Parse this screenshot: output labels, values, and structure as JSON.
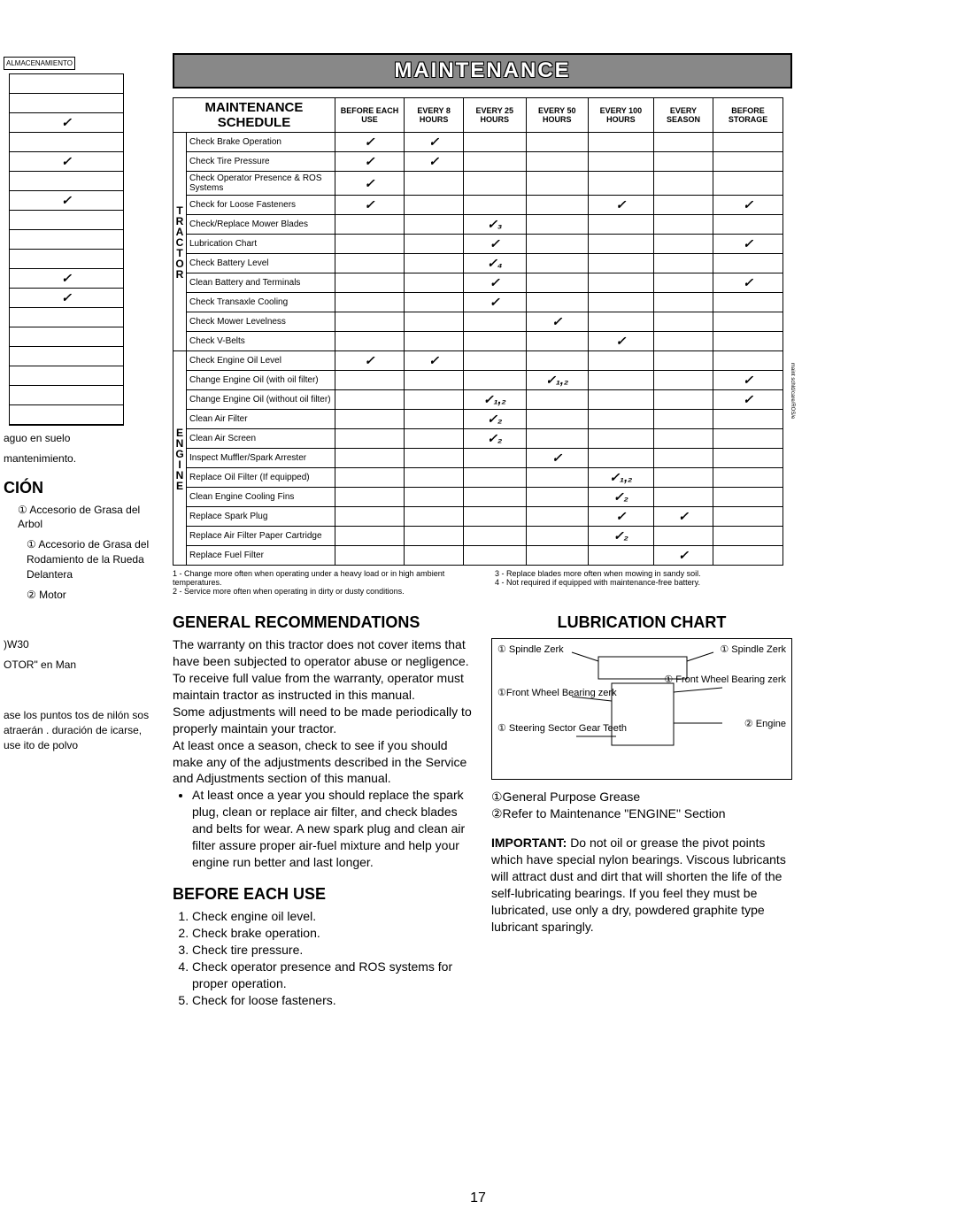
{
  "banner": "MAINTENANCE",
  "schedule_title": "MAINTENANCE SCHEDULE",
  "cols": [
    "BEFORE EACH USE",
    "EVERY 8 HOURS",
    "EVERY 25 HOURS",
    "EVERY 50 HOURS",
    "EVERY 100 HOURS",
    "EVERY SEASON",
    "BEFORE STORAGE"
  ],
  "group_labels": [
    "TRACTOR",
    "ENGINE"
  ],
  "tractor_rows": [
    {
      "t": "Check Brake Operation",
      "c": [
        "✓",
        "✓",
        "",
        "",
        "",
        "",
        ""
      ]
    },
    {
      "t": "Check Tire Pressure",
      "c": [
        "✓",
        "✓",
        "",
        "",
        "",
        "",
        ""
      ]
    },
    {
      "t": "Check Operator Presence & ROS Systems",
      "c": [
        "✓",
        "",
        "",
        "",
        "",
        "",
        ""
      ]
    },
    {
      "t": "Check for Loose Fasteners",
      "c": [
        "✓",
        "",
        "",
        "",
        "✓",
        "",
        "✓"
      ]
    },
    {
      "t": "Check/Replace Mower Blades",
      "c": [
        "",
        "",
        "✓₃",
        "",
        "",
        "",
        ""
      ]
    },
    {
      "t": "Lubrication Chart",
      "c": [
        "",
        "",
        "✓",
        "",
        "",
        "",
        "✓"
      ]
    },
    {
      "t": "Check Battery Level",
      "c": [
        "",
        "",
        "✓₄",
        "",
        "",
        "",
        ""
      ]
    },
    {
      "t": "Clean Battery and Terminals",
      "c": [
        "",
        "",
        "✓",
        "",
        "",
        "",
        "✓"
      ]
    },
    {
      "t": "Check Transaxle Cooling",
      "c": [
        "",
        "",
        "✓",
        "",
        "",
        "",
        ""
      ]
    },
    {
      "t": "Check Mower Levelness",
      "c": [
        "",
        "",
        "",
        "✓",
        "",
        "",
        ""
      ]
    },
    {
      "t": "Check V-Belts",
      "c": [
        "",
        "",
        "",
        "",
        "✓",
        "",
        ""
      ]
    }
  ],
  "engine_rows": [
    {
      "t": "Check Engine Oil Level",
      "c": [
        "✓",
        "✓",
        "",
        "",
        "",
        "",
        ""
      ]
    },
    {
      "t": "Change Engine Oil (with oil filter)",
      "c": [
        "",
        "",
        "",
        "✓₁,₂",
        "",
        "",
        "✓"
      ]
    },
    {
      "t": "Change Engine Oil (without oil filter)",
      "c": [
        "",
        "",
        "✓₁,₂",
        "",
        "",
        "",
        "✓"
      ]
    },
    {
      "t": "Clean Air Filter",
      "c": [
        "",
        "",
        "✓₂",
        "",
        "",
        "",
        ""
      ]
    },
    {
      "t": "Clean Air Screen",
      "c": [
        "",
        "",
        "✓₂",
        "",
        "",
        "",
        ""
      ]
    },
    {
      "t": "Inspect Muffler/Spark Arrester",
      "c": [
        "",
        "",
        "",
        "✓",
        "",
        "",
        ""
      ]
    },
    {
      "t": "Replace Oil Filter (If equipped)",
      "c": [
        "",
        "",
        "",
        "",
        "✓₁,₂",
        "",
        ""
      ]
    },
    {
      "t": "Clean Engine Cooling Fins",
      "c": [
        "",
        "",
        "",
        "",
        "✓₂",
        "",
        ""
      ]
    },
    {
      "t": "Replace Spark Plug",
      "c": [
        "",
        "",
        "",
        "",
        "✓",
        "✓",
        ""
      ]
    },
    {
      "t": "Replace Air Filter Paper Cartridge",
      "c": [
        "",
        "",
        "",
        "",
        "✓₂",
        "",
        ""
      ]
    },
    {
      "t": "Replace Fuel Filter",
      "c": [
        "",
        "",
        "",
        "",
        "",
        "✓",
        ""
      ]
    }
  ],
  "fn_left": "1 - Change more often when operating under a heavy load or in high ambient temperatures.\n2 - Service more often when operating in dirty or dusty conditions.",
  "fn_right": "3 - Replace blades more often when mowing in sandy soil.\n4 - Not required if equipped with maintenance-free battery.",
  "gen_title": "GENERAL RECOMMENDATIONS",
  "gen_p1": "The warranty on this tractor does not cover items that have been subjected to operator abuse or negligence. To receive full value from the warranty, operator must maintain tractor as instructed in this manual.",
  "gen_p2": "Some adjustments will need to be made periodically to properly maintain your tractor.",
  "gen_p3": "At least once a season, check to see if you should make any of the adjustments described in the Service and Adjustments section of this manual.",
  "gen_bullet": "At least once a year you should replace the spark plug, clean or replace air filter, and check blades and belts for wear. A new spark plug and clean air filter assure proper air-fuel mixture and help your engine run better and last longer.",
  "beu_title": "BEFORE EACH USE",
  "beu": [
    "Check engine oil level.",
    "Check brake operation.",
    "Check tire pressure.",
    "Check operator presence and ROS systems for proper operation.",
    "Check for loose fasteners."
  ],
  "lub_title": "LUBRICATION CHART",
  "lub_labels": {
    "sp": "① Spindle Zerk",
    "fw": "①Front Wheel Bearing zerk",
    "fwr": "① Front Wheel Bearing zerk",
    "st": "① Steering Sector Gear Teeth",
    "en": "② Engine"
  },
  "lub_leg1": "①General Purpose Grease",
  "lub_leg2": "②Refer to Maintenance \"ENGINE\" Section",
  "imp": "IMPORTANT: Do not oil or grease the pivot points which have special nylon bearings. Viscous lubricants will attract dust and dirt that will shorten the life of the self-lubricating bearings. If you feel they must be lubricated, use only a dry, powdered graphite type lubricant sparingly.",
  "pagenum": "17",
  "frag": {
    "alm": "ALMACENAMIENTO",
    "suelo": "aguo en suelo",
    "mant": "mantenimiento.",
    "cion": "CIÓN",
    "acc": "① Accesorio de Grasa del Arbol",
    "acc2": "① Accesorio de Grasa del Rodamiento de la Rueda Delantera",
    "motor": "② Motor",
    "w30": ")W30",
    "otor": "OTOR\" en Man",
    "ase": "ase los puntos tos de nilón sos atraerán . duración de icarse, use ito de polvo"
  }
}
